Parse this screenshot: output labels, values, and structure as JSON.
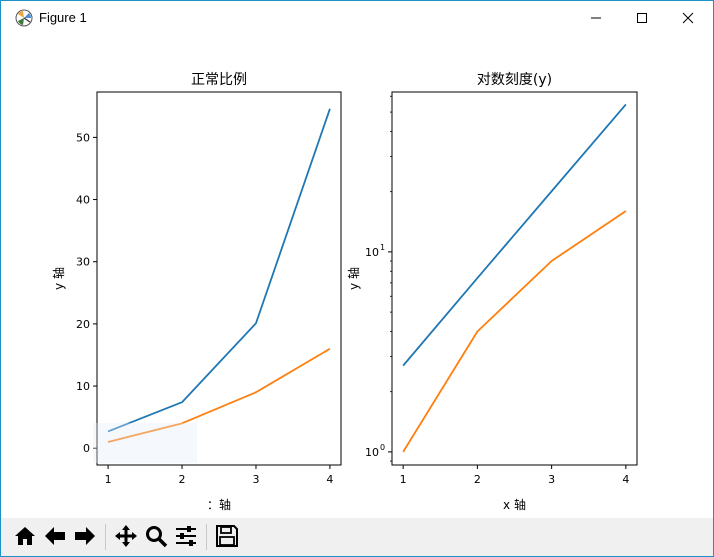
{
  "window": {
    "title": "Figure 1",
    "icons": [
      "matplotlib-logo-icon",
      "minimize-icon",
      "maximize-icon",
      "close-icon"
    ]
  },
  "toolbar": {
    "buttons": [
      "home-icon",
      "back-icon",
      "forward-icon",
      "pan-icon",
      "zoom-icon",
      "configure-subplots-icon",
      "save-icon"
    ]
  },
  "colors": {
    "series1": "#1f77b4",
    "series2": "#ff7f0e",
    "highlight": "#e1eefa"
  },
  "chart_data": [
    {
      "type": "line",
      "title": "正常比例",
      "xlabel": "：轴",
      "ylabel": "y 轴",
      "x": [
        1,
        2,
        3,
        4
      ],
      "xticks": [
        "1",
        "2",
        "3",
        "4"
      ],
      "yticks": [
        "0",
        "10",
        "20",
        "30",
        "40",
        "50"
      ],
      "ylim": [
        -2.7,
        57.3
      ],
      "xlim": [
        0.85,
        4.15
      ],
      "series": [
        {
          "values": [
            2.7,
            7.4,
            20.1,
            54.6
          ]
        },
        {
          "values": [
            1,
            4,
            9,
            16
          ]
        }
      ],
      "grid": false
    },
    {
      "type": "line",
      "title": "对数刻度(y)",
      "xlabel": "x 轴",
      "ylabel": "y 轴",
      "x": [
        1,
        2,
        3,
        4
      ],
      "xticks": [
        "1",
        "2",
        "3",
        "4"
      ],
      "yscale": "log",
      "ytick_base": "10",
      "ytick_exponents": [
        "0",
        "1"
      ],
      "ylim": [
        0.86,
        63
      ],
      "xlim": [
        0.85,
        4.15
      ],
      "series": [
        {
          "values": [
            2.7,
            7.4,
            20.1,
            54.6
          ]
        },
        {
          "values": [
            1,
            4,
            9,
            16
          ]
        }
      ],
      "grid": false
    }
  ]
}
